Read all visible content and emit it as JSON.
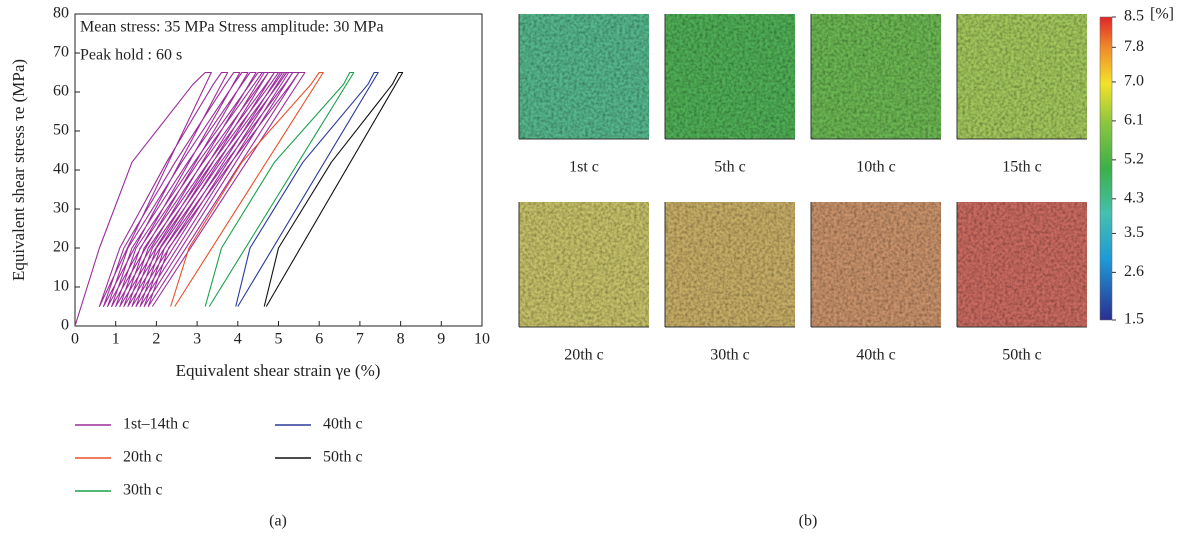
{
  "chart_data": {
    "type": "line",
    "xlabel": "Equivalent shear strain γe (%)",
    "ylabel": "Equivalent shear stress τe (MPa)",
    "annotations": [
      "Mean stress: 35 MPa  Stress amplitude: 30 MPa",
      "Peak hold : 60 s"
    ],
    "xlim": [
      0,
      10
    ],
    "xticks": [
      0,
      1,
      2,
      3,
      4,
      5,
      6,
      7,
      8,
      9,
      10
    ],
    "ylim": [
      0,
      80
    ],
    "yticks": [
      0,
      10,
      20,
      30,
      40,
      50,
      60,
      70,
      80
    ],
    "grid": false,
    "series": [
      {
        "name": "1st–14th c",
        "color": "#9b2d9b",
        "x": [
          0,
          0.6,
          1.4,
          2.9,
          3.2,
          3.35,
          0.6,
          1.1,
          2.25,
          3.4,
          3.6,
          3.75,
          0.7,
          1.2,
          2.46,
          3.7,
          3.9,
          4.05,
          0.8,
          1.3,
          2.62,
          3.9,
          4.1,
          4.25,
          0.9,
          1.4,
          2.77,
          4.1,
          4.3,
          4.45,
          1.0,
          1.5,
          2.93,
          4.3,
          4.5,
          4.65,
          1.1,
          1.6,
          3.03,
          4.4,
          4.6,
          4.75,
          1.2,
          1.7,
          3.15,
          4.55,
          4.75,
          4.9,
          1.3,
          1.8,
          3.28,
          4.7,
          4.9,
          5.05,
          1.4,
          1.9,
          3.38,
          4.8,
          5.0,
          5.15,
          1.5,
          2.0,
          3.48,
          4.9,
          5.1,
          5.25,
          1.6,
          2.1,
          3.58,
          5.0,
          5.2,
          5.35,
          1.7,
          2.2,
          3.71,
          5.15,
          5.35,
          5.5,
          1.8,
          2.3,
          3.84,
          5.3,
          5.5,
          5.65,
          1.9
        ],
        "values": [
          0,
          20,
          42,
          62,
          65,
          65,
          5,
          20,
          42,
          62,
          65,
          65,
          5,
          20,
          42,
          62,
          65,
          65,
          5,
          20,
          42,
          62,
          65,
          65,
          5,
          20,
          42,
          62,
          65,
          65,
          5,
          20,
          42,
          62,
          65,
          65,
          5,
          20,
          42,
          62,
          65,
          65,
          5,
          20,
          42,
          62,
          65,
          65,
          5,
          20,
          42,
          62,
          65,
          65,
          5,
          20,
          42,
          62,
          65,
          65,
          5,
          20,
          42,
          62,
          65,
          65,
          5,
          20,
          42,
          62,
          65,
          65,
          5,
          20,
          42,
          62,
          65,
          65,
          5,
          20,
          42,
          62,
          65,
          65,
          5
        ]
      },
      {
        "name": "20th c",
        "color": "#e8502a",
        "x": [
          2.35,
          2.8,
          4.1,
          5.8,
          6.0,
          6.1,
          2.45
        ],
        "values": [
          5,
          20,
          42,
          62,
          65,
          65,
          5
        ]
      },
      {
        "name": "30th c",
        "color": "#1aa04a",
        "x": [
          3.2,
          3.6,
          4.9,
          6.6,
          6.75,
          6.85,
          3.3
        ],
        "values": [
          5,
          20,
          42,
          62,
          65,
          65,
          5
        ]
      },
      {
        "name": "40th c",
        "color": "#2a3a9a",
        "x": [
          3.95,
          4.3,
          5.6,
          7.2,
          7.35,
          7.45,
          4.0
        ],
        "values": [
          5,
          20,
          42,
          62,
          65,
          65,
          5
        ]
      },
      {
        "name": "50th c",
        "color": "#111111",
        "x": [
          4.65,
          5.0,
          6.3,
          7.8,
          7.95,
          8.05,
          4.7
        ],
        "values": [
          5,
          20,
          42,
          62,
          65,
          65,
          5
        ]
      }
    ]
  },
  "panel_labels": [
    "(a)",
    "(b)"
  ],
  "maps": [
    {
      "label": "1st c",
      "color": "#55b68c"
    },
    {
      "label": "5th c",
      "color": "#4fae55"
    },
    {
      "label": "10th c",
      "color": "#6bb652"
    },
    {
      "label": "15th c",
      "color": "#a2c65c"
    },
    {
      "label": "20th c",
      "color": "#c5c068"
    },
    {
      "label": "30th c",
      "color": "#c6ad66"
    },
    {
      "label": "40th c",
      "color": "#c8926a"
    },
    {
      "label": "50th c",
      "color": "#c96a60"
    }
  ],
  "colorbar": {
    "unit": "[%]",
    "lim": [
      1.5,
      8.5
    ],
    "ticks": [
      8.5,
      7.8,
      7.0,
      6.1,
      5.2,
      4.3,
      3.5,
      2.6,
      1.5
    ]
  }
}
